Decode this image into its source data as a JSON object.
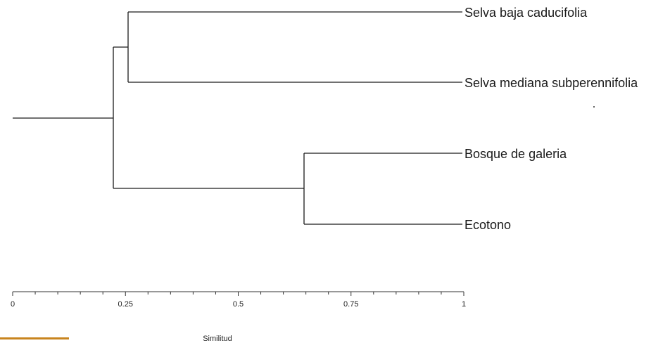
{
  "chart_data": {
    "type": "dendrogram",
    "xlabel": "Similitud",
    "xlim": [
      0,
      1
    ],
    "ticks": [
      {
        "value": 0,
        "label": "0"
      },
      {
        "value": 0.25,
        "label": "0.25"
      },
      {
        "value": 0.5,
        "label": "0.5"
      },
      {
        "value": 0.75,
        "label": "0.75"
      },
      {
        "value": 1,
        "label": "1"
      }
    ],
    "leaves": [
      "Selva baja caducifolia",
      "Selva mediana subperennifolia",
      "Bosque de galeria",
      "Ecotono"
    ],
    "merges": [
      {
        "members": [
          "Bosque de galeria",
          "Ecotono"
        ],
        "similarity": 0.645
      },
      {
        "members": [
          "Selva baja caducifolia",
          "Selva mediana subperennifolia"
        ],
        "similarity": 0.255
      },
      {
        "members": [
          "Selva baja caducifolia",
          "Selva mediana subperennifolia",
          "Bosque de galeria",
          "Ecotono"
        ],
        "similarity": 0.22
      }
    ]
  },
  "colors": {
    "line": "#1a1a1a",
    "accent_bar": "#c8841e"
  }
}
